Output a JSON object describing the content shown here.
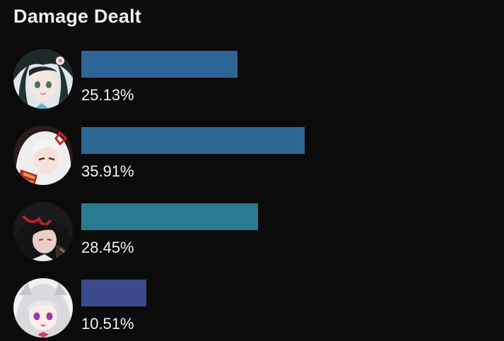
{
  "title": "Damage Dealt",
  "bar_full_scale_percent": 50,
  "characters": [
    {
      "percent": 25.13,
      "label": "25.13%",
      "color": "#2f6596",
      "avatar_icon": "dark-haired-girl-avatar"
    },
    {
      "percent": 35.91,
      "label": "35.91%",
      "color": "#2d6895",
      "avatar_icon": "white-haired-girl-avatar"
    },
    {
      "percent": 28.45,
      "label": "28.45%",
      "color": "#2a7b92",
      "avatar_icon": "black-red-haired-avatar"
    },
    {
      "percent": 10.51,
      "label": "10.51%",
      "color": "#3a4a8c",
      "avatar_icon": "silver-haired-girl-avatar"
    }
  ]
}
